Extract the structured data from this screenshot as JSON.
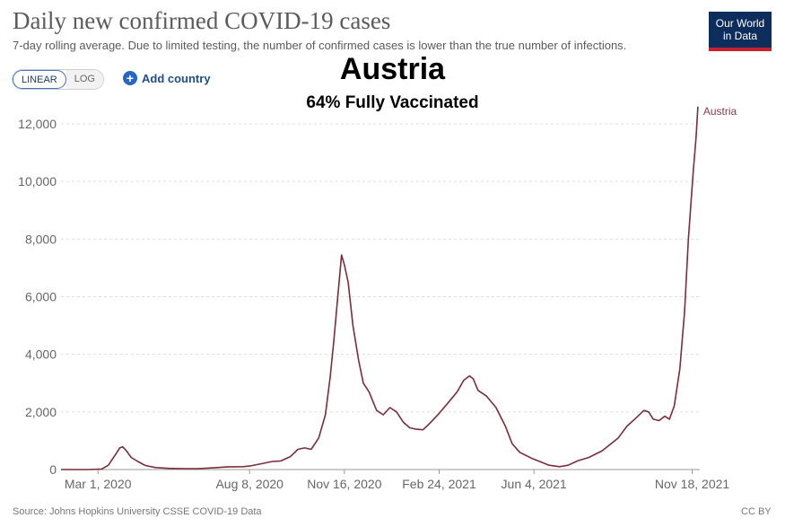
{
  "header": {
    "title": "Daily new confirmed COVID-19 cases",
    "subtitle": "7-day rolling average. Due to limited testing, the number of confirmed cases is lower than the true number of infections.",
    "logo_line1": "Our World",
    "logo_line2": "in Data"
  },
  "controls": {
    "linear_label": "LINEAR",
    "log_label": "LOG",
    "add_country_label": "Add country"
  },
  "overlay": {
    "title": "Austria",
    "subtitle": "64% Fully Vaccinated"
  },
  "footer": {
    "source": "Source: Johns Hopkins University CSSE COVID-19 Data",
    "license": "CC BY"
  },
  "colors": {
    "series": "#7a2d3a",
    "grid": "#dddddd",
    "logo_bg": "#0d2e5c",
    "logo_accent": "#c8202f"
  },
  "chart_data": {
    "type": "line",
    "title": "Daily new confirmed COVID-19 cases",
    "xlabel": "",
    "ylabel": "",
    "ylim": [
      0,
      12000
    ],
    "yticks": [
      0,
      2000,
      4000,
      6000,
      8000,
      10000,
      12000
    ],
    "ytick_labels": [
      "0",
      "2,000",
      "4,000",
      "6,000",
      "8,000",
      "10,000",
      "12,000"
    ],
    "xticks": [
      "2020-03-01",
      "2020-08-08",
      "2020-11-16",
      "2021-02-24",
      "2021-06-04",
      "2021-11-18"
    ],
    "xtick_labels": [
      "Mar 1, 2020",
      "Aug 8, 2020",
      "Nov 16, 2020",
      "Feb 24, 2021",
      "Jun 4, 2021",
      "Nov 18, 2021"
    ],
    "xlim": [
      "2020-01-22",
      "2021-11-26"
    ],
    "grid": true,
    "series": [
      {
        "name": "Austria",
        "points": [
          [
            "2020-01-22",
            0
          ],
          [
            "2020-02-20",
            0
          ],
          [
            "2020-03-05",
            20
          ],
          [
            "2020-03-12",
            150
          ],
          [
            "2020-03-18",
            450
          ],
          [
            "2020-03-24",
            750
          ],
          [
            "2020-03-27",
            790
          ],
          [
            "2020-03-31",
            650
          ],
          [
            "2020-04-05",
            420
          ],
          [
            "2020-04-12",
            280
          ],
          [
            "2020-04-20",
            140
          ],
          [
            "2020-05-01",
            70
          ],
          [
            "2020-05-15",
            40
          ],
          [
            "2020-06-01",
            30
          ],
          [
            "2020-06-15",
            30
          ],
          [
            "2020-07-01",
            60
          ],
          [
            "2020-07-15",
            90
          ],
          [
            "2020-08-01",
            100
          ],
          [
            "2020-08-08",
            120
          ],
          [
            "2020-08-20",
            200
          ],
          [
            "2020-09-01",
            280
          ],
          [
            "2020-09-10",
            300
          ],
          [
            "2020-09-20",
            450
          ],
          [
            "2020-09-28",
            700
          ],
          [
            "2020-10-05",
            750
          ],
          [
            "2020-10-12",
            700
          ],
          [
            "2020-10-20",
            1100
          ],
          [
            "2020-10-27",
            1900
          ],
          [
            "2020-11-01",
            3200
          ],
          [
            "2020-11-05",
            4500
          ],
          [
            "2020-11-09",
            6000
          ],
          [
            "2020-11-13",
            7450
          ],
          [
            "2020-11-16",
            7100
          ],
          [
            "2020-11-20",
            6500
          ],
          [
            "2020-11-25",
            5000
          ],
          [
            "2020-12-01",
            3800
          ],
          [
            "2020-12-06",
            3000
          ],
          [
            "2020-12-12",
            2700
          ],
          [
            "2020-12-20",
            2050
          ],
          [
            "2020-12-27",
            1900
          ],
          [
            "2021-01-03",
            2150
          ],
          [
            "2021-01-10",
            2000
          ],
          [
            "2021-01-17",
            1650
          ],
          [
            "2021-01-24",
            1450
          ],
          [
            "2021-01-31",
            1400
          ],
          [
            "2021-02-07",
            1380
          ],
          [
            "2021-02-14",
            1600
          ],
          [
            "2021-02-24",
            1950
          ],
          [
            "2021-03-05",
            2300
          ],
          [
            "2021-03-15",
            2700
          ],
          [
            "2021-03-22",
            3100
          ],
          [
            "2021-03-28",
            3250
          ],
          [
            "2021-04-01",
            3150
          ],
          [
            "2021-04-06",
            2750
          ],
          [
            "2021-04-15",
            2550
          ],
          [
            "2021-04-25",
            2150
          ],
          [
            "2021-05-05",
            1500
          ],
          [
            "2021-05-12",
            900
          ],
          [
            "2021-05-20",
            600
          ],
          [
            "2021-06-01",
            400
          ],
          [
            "2021-06-10",
            280
          ],
          [
            "2021-06-20",
            150
          ],
          [
            "2021-07-01",
            100
          ],
          [
            "2021-07-10",
            150
          ],
          [
            "2021-07-20",
            300
          ],
          [
            "2021-08-01",
            420
          ],
          [
            "2021-08-15",
            650
          ],
          [
            "2021-09-01",
            1100
          ],
          [
            "2021-09-10",
            1500
          ],
          [
            "2021-09-20",
            1800
          ],
          [
            "2021-09-28",
            2050
          ],
          [
            "2021-10-03",
            2000
          ],
          [
            "2021-10-08",
            1750
          ],
          [
            "2021-10-14",
            1700
          ],
          [
            "2021-10-20",
            1850
          ],
          [
            "2021-10-25",
            1750
          ],
          [
            "2021-10-30",
            2200
          ],
          [
            "2021-11-05",
            3500
          ],
          [
            "2021-11-10",
            5500
          ],
          [
            "2021-11-14",
            8000
          ],
          [
            "2021-11-19",
            10300
          ],
          [
            "2021-11-22",
            11500
          ],
          [
            "2021-11-24",
            12600
          ]
        ]
      }
    ]
  }
}
